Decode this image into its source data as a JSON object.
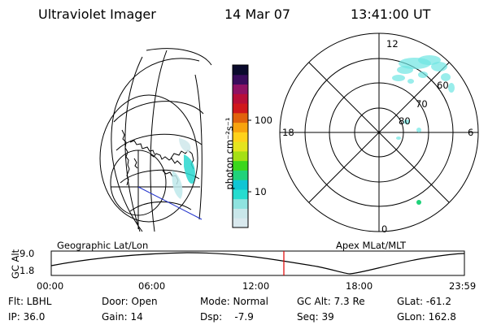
{
  "header": {
    "instrument": "Ultraviolet Imager",
    "date": "14 Mar 07",
    "time": "13:41:00 UT"
  },
  "colorbar": {
    "unit_label": "photon cm⁻²s⁻¹",
    "ticks": [
      "100",
      "10"
    ],
    "colors": [
      "#d9e9ee",
      "#c9e7ea",
      "#8fe3df",
      "#25dccf",
      "#10c6d4",
      "#1fd27a",
      "#3bd71c",
      "#a5e014",
      "#e5e41e",
      "#ffd21a",
      "#f8a30e",
      "#e1620c",
      "#d0171b",
      "#b80e38",
      "#8f1264",
      "#3a0c5c",
      "#0a0a2c"
    ]
  },
  "polar": {
    "lat_labels": [
      "60",
      "70",
      "80"
    ],
    "mlt_labels": {
      "top": "12",
      "left": "18",
      "right": "6",
      "bottom": "0"
    },
    "aurora_color": "#6ee5e3"
  },
  "altitude_strip": {
    "left_title": "Geographic Lat/Lon",
    "right_title": "Apex MLat/MLT",
    "ylabel": "GC Alt",
    "yticks": [
      "9.0",
      "1.8"
    ],
    "xticks": [
      "00:00",
      "06:00",
      "12:00",
      "18:00",
      "23:59"
    ],
    "current_marker_color": "#e00000"
  },
  "info": {
    "row1": {
      "flt": "Flt: LBHL",
      "door": "Door: Open",
      "mode": "Mode: Normal",
      "gcalt": "GC Alt: 7.3 Re",
      "glat": "GLat: -61.2"
    },
    "row2": {
      "ip": "IP: 36.0",
      "gain": "Gain: 14",
      "dsp": "Dsp:    -7.9",
      "seq": "Seq: 39",
      "glon": "GLon: 162.8"
    }
  }
}
